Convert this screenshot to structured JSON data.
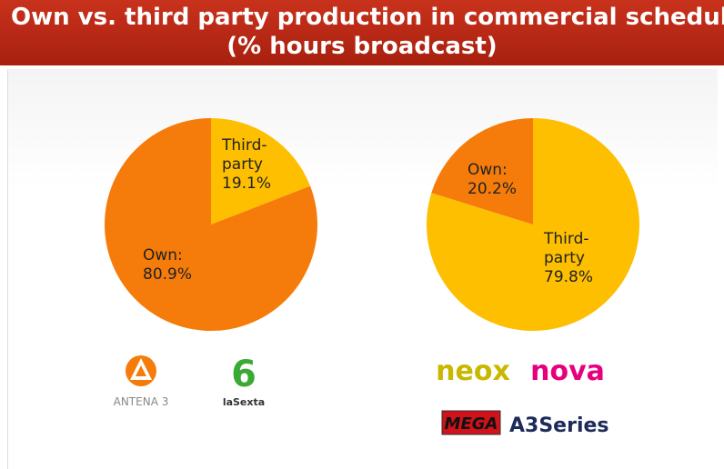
{
  "title": [
    "Own vs. third party production in commercial schedule",
    "(% hours broadcast)"
  ],
  "chart_data": [
    {
      "type": "pie",
      "categories": [
        "Third-party",
        "Own:"
      ],
      "values": [
        19.1,
        80.9
      ],
      "value_labels": [
        "19.1%",
        "80.9%"
      ],
      "colors": [
        "#fdbf00",
        "#f57c0a"
      ]
    },
    {
      "type": "pie",
      "categories": [
        "Third-party",
        "Own:"
      ],
      "values": [
        79.8,
        20.2
      ],
      "value_labels": [
        "79.8%",
        "20.2%"
      ],
      "colors": [
        "#fdbf00",
        "#f57c0a"
      ]
    }
  ],
  "logos": [
    "ANTENA 3",
    "laSexta",
    "neox",
    "nova",
    "MEGA",
    "A3Series"
  ]
}
